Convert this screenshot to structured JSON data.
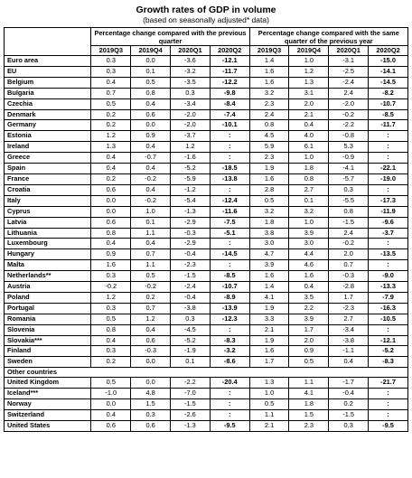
{
  "title": "Growth rates of GDP in volume",
  "subtitle": "(based on seasonally adjusted* data)",
  "group_headers": [
    "Percentage change compared with the previous quarter",
    "Percentage change compared with the same quarter of the previous year"
  ],
  "quarters": [
    "2019Q3",
    "2019Q4",
    "2020Q1",
    "2020Q2",
    "2019Q3",
    "2019Q4",
    "2020Q1",
    "2020Q2"
  ],
  "rows": [
    {
      "name": "Euro area",
      "values": [
        "0.3",
        "0.0",
        "-3.6",
        "-12.1",
        "1.4",
        "1.0",
        "-3.1",
        "-15.0"
      ]
    },
    {
      "name": "EU",
      "values": [
        "0.3",
        "0.1",
        "-3.2",
        "-11.7",
        "1.6",
        "1.2",
        "-2.5",
        "-14.1"
      ]
    },
    {
      "name": "Belgium",
      "values": [
        "0.4",
        "0.5",
        "-3.5",
        "-12.2",
        "1.6",
        "1.3",
        "-2.4",
        "-14.5"
      ]
    },
    {
      "name": "Bulgaria",
      "values": [
        "0.7",
        "0.8",
        "0.3",
        "-9.8",
        "3.2",
        "3.1",
        "2.4",
        "-8.2"
      ]
    },
    {
      "name": "Czechia",
      "values": [
        "0.5",
        "0.4",
        "-3.4",
        "-8.4",
        "2.3",
        "2.0",
        "-2.0",
        "-10.7"
      ]
    },
    {
      "name": "Denmark",
      "values": [
        "0.2",
        "0.6",
        "-2.0",
        "-7.4",
        "2.4",
        "2.1",
        "-0.2",
        "-8.5"
      ]
    },
    {
      "name": "Germany",
      "values": [
        "0.2",
        "0.0",
        "-2.0",
        "-10.1",
        "0.8",
        "0.4",
        "-2.2",
        "-11.7"
      ]
    },
    {
      "name": "Estonia",
      "values": [
        "1.2",
        "0.9",
        "-3.7",
        ":",
        "4.5",
        "4.0",
        "-0.8",
        ":"
      ]
    },
    {
      "name": "Ireland",
      "values": [
        "1.3",
        "0.4",
        "1.2",
        ":",
        "5.9",
        "6.1",
        "5.3",
        ":"
      ]
    },
    {
      "name": "Greece",
      "values": [
        "0.4",
        "-0.7",
        "-1.6",
        ":",
        "2.3",
        "1.0",
        "-0.9",
        ":"
      ]
    },
    {
      "name": "Spain",
      "values": [
        "0.4",
        "0.4",
        "-5.2",
        "-18.5",
        "1.9",
        "1.8",
        "-4.1",
        "-22.1"
      ]
    },
    {
      "name": "France",
      "values": [
        "0.2",
        "-0.2",
        "-5.9",
        "-13.8",
        "1.6",
        "0.8",
        "-5.7",
        "-19.0"
      ]
    },
    {
      "name": "Croatia",
      "values": [
        "0.6",
        "0.4",
        "-1.2",
        ":",
        "2.8",
        "2.7",
        "0.3",
        ":"
      ]
    },
    {
      "name": "Italy",
      "values": [
        "0.0",
        "-0.2",
        "-5.4",
        "-12.4",
        "0.5",
        "0.1",
        "-5.5",
        "-17.3"
      ]
    },
    {
      "name": "Cyprus",
      "values": [
        "0.0",
        "1.0",
        "-1.3",
        "-11.6",
        "3.2",
        "3.2",
        "0.8",
        "-11.9"
      ]
    },
    {
      "name": "Latvia",
      "values": [
        "0.6",
        "0.1",
        "-2.9",
        "-7.5",
        "1.8",
        "1.0",
        "-1.5",
        "-9.6"
      ]
    },
    {
      "name": "Lithuania",
      "values": [
        "0.8",
        "1.1",
        "-0.3",
        "-5.1",
        "3.8",
        "3.9",
        "2.4",
        "-3.7"
      ]
    },
    {
      "name": "Luxembourg",
      "values": [
        "0.4",
        "0.4",
        "-2.9",
        ":",
        "3.0",
        "3.0",
        "-0.2",
        ":"
      ]
    },
    {
      "name": "Hungary",
      "values": [
        "0.9",
        "0.7",
        "-0.4",
        "-14.5",
        "4.7",
        "4.4",
        "2.0",
        "-13.5"
      ]
    },
    {
      "name": "Malta",
      "values": [
        "1.6",
        "1.1",
        "-2.3",
        ":",
        "3.9",
        "4.6",
        "0.7",
        ":"
      ]
    },
    {
      "name": "Netherlands**",
      "values": [
        "0.3",
        "0.5",
        "-1.5",
        "-8.5",
        "1.6",
        "1.6",
        "-0.3",
        "-9.0"
      ]
    },
    {
      "name": "Austria",
      "values": [
        "-0.2",
        "-0.2",
        "-2.4",
        "-10.7",
        "1.4",
        "0.4",
        "-2.8",
        "-13.3"
      ]
    },
    {
      "name": "Poland",
      "values": [
        "1.2",
        "0.2",
        "-0.4",
        "-8.9",
        "4.1",
        "3.5",
        "1.7",
        "-7.9"
      ]
    },
    {
      "name": "Portugal",
      "values": [
        "0.3",
        "0.7",
        "-3.8",
        "-13.9",
        "1.9",
        "2.2",
        "-2.3",
        "-16.3"
      ]
    },
    {
      "name": "Romania",
      "values": [
        "0.5",
        "1.2",
        "0.3",
        "-12.3",
        "3.3",
        "3.9",
        "2.7",
        "-10.5"
      ]
    },
    {
      "name": "Slovenia",
      "values": [
        "0.8",
        "0.4",
        "-4.5",
        ":",
        "2.1",
        "1.7",
        "-3.4",
        ":"
      ]
    },
    {
      "name": "Slovakia***",
      "values": [
        "0.4",
        "0.6",
        "-5.2",
        "-8.3",
        "1.9",
        "2.0",
        "-3.8",
        "-12.1"
      ]
    },
    {
      "name": "Finland",
      "values": [
        "0.3",
        "-0.3",
        "-1.9",
        "-3.2",
        "1.6",
        "0.9",
        "-1.1",
        "-5.2"
      ]
    },
    {
      "name": "Sweden",
      "values": [
        "0.2",
        "0.0",
        "0.1",
        "-8.6",
        "1.7",
        "0.5",
        "0.4",
        "-8.3"
      ]
    }
  ],
  "other_label": "Other countries",
  "other_rows": [
    {
      "name": "United Kingdom",
      "values": [
        "0.5",
        "0.0",
        "-2.2",
        "-20.4",
        "1.3",
        "1.1",
        "-1.7",
        "-21.7"
      ]
    },
    {
      "name": "Iceland***",
      "values": [
        "-1.0",
        "4.8",
        "-7.0",
        ":",
        "1.0",
        "4.1",
        "-0.4",
        ":"
      ]
    },
    {
      "name": "Norway",
      "values": [
        "0.0",
        "1.5",
        "-1.5",
        ":",
        "0.5",
        "1.8",
        "0.2",
        ":"
      ]
    },
    {
      "name": "Switzerland",
      "values": [
        "0.4",
        "0.3",
        "-2.6",
        ":",
        "1.1",
        "1.5",
        "-1.5",
        ":"
      ]
    },
    {
      "name": "United States",
      "values": [
        "0.6",
        "0.6",
        "-1.3",
        "-9.5",
        "2.1",
        "2.3",
        "0.3",
        "-9.5"
      ]
    }
  ]
}
